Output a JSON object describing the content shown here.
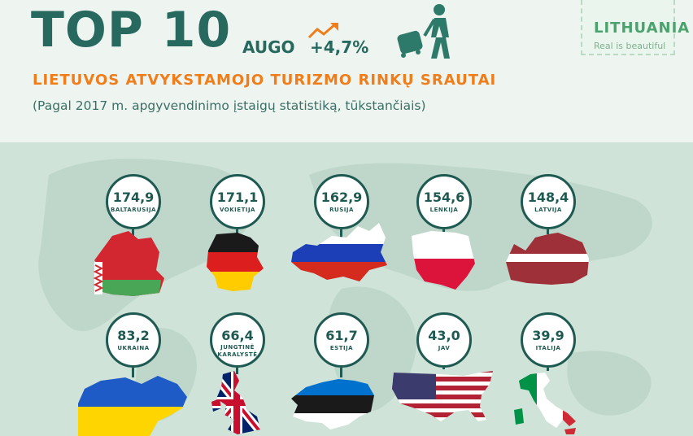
{
  "header": {
    "title": "TOP 10",
    "augo_label": "AUGO",
    "growth": "+4,7%",
    "subtitle": "LIETUVOS ATVYKSTAMOJO TURIZMO RINKŲ SRAUTAI",
    "note": "(Pagal 2017 m. apgyvendinimo įstaigų statistiką, tūkstančiais)"
  },
  "logo": {
    "main": "LITHUANIA",
    "sub": "Real is beautiful"
  },
  "icons": {
    "trend": "trend-up-arrow-icon",
    "traveler": "traveler-with-suitcase-icon"
  },
  "colors": {
    "primary": "#1f5a52",
    "accent": "#ef7d1a",
    "background": "#eef4ef",
    "map": "#cfe3d9"
  },
  "countries": [
    {
      "value": "174,9",
      "name": "BALTARUSIJA"
    },
    {
      "value": "171,1",
      "name": "VOKIETIJA"
    },
    {
      "value": "162,9",
      "name": "RUSIJA"
    },
    {
      "value": "154,6",
      "name": "LENKIJA"
    },
    {
      "value": "148,4",
      "name": "LATVIJA"
    },
    {
      "value": "83,2",
      "name": "UKRAINA"
    },
    {
      "value": "66,4",
      "name": "JUNGTINĖ KARALYSTĖ"
    },
    {
      "value": "61,7",
      "name": "ESTIJA"
    },
    {
      "value": "43,0",
      "name": "JAV"
    },
    {
      "value": "39,9",
      "name": "ITALIJA"
    }
  ]
}
